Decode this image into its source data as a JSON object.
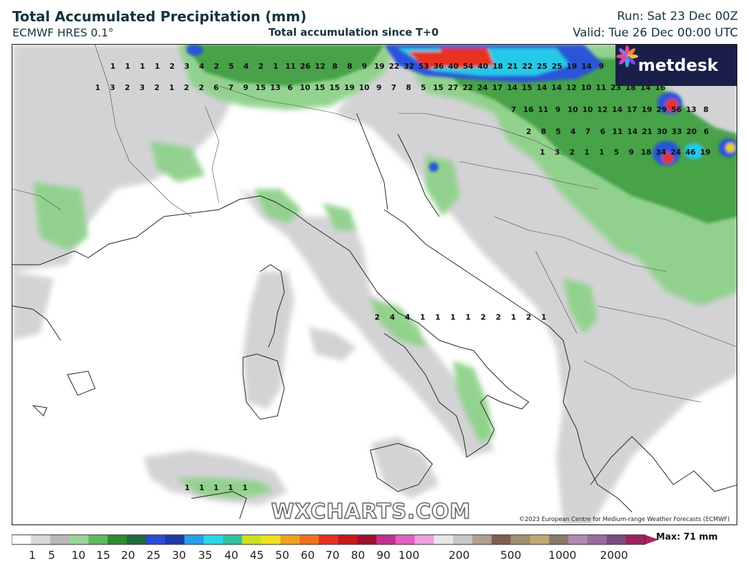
{
  "header": {
    "title": "Total Accumulated Precipitation (mm)",
    "model": "ECMWF HRES 0.1°",
    "accumulation_note": "Total accumulation since T+0",
    "run": "Run: Sat 23 Dec 00Z",
    "valid": "Valid: Tue 26 Dec 00:00 UTC"
  },
  "logo": {
    "text": "metdesk",
    "icon": "metdesk-flower-icon"
  },
  "watermark": "WXCHARTS.COM",
  "credit": "©2023 European Centre for Medium-range Weather Forecasts (ECMWF)",
  "legend": {
    "max_label": "Max: 71 mm",
    "ticks": [
      "1",
      "5",
      "10",
      "15",
      "20",
      "25",
      "30",
      "35",
      "40",
      "45",
      "50",
      "60",
      "70",
      "80",
      "90",
      "100",
      "200",
      "500",
      "1000",
      "2000"
    ]
  },
  "colors": {
    "land_background": "#ffffff",
    "light_green": "#8fd18a",
    "mid_green": "#3a9a3e",
    "blue": "#2a55d8",
    "cyan": "#28c8e8",
    "red": "#e83020",
    "logo_bg": "#1a1f4a"
  },
  "map_values": {
    "alps_north": [
      "1",
      "1",
      "1",
      "1",
      "2",
      "3",
      "4",
      "2",
      "5",
      "4",
      "2",
      "1",
      "11",
      "26",
      "12",
      "8",
      "8",
      "9",
      "19",
      "22",
      "32",
      "53",
      "36",
      "40",
      "54",
      "40",
      "18",
      "21",
      "22",
      "25",
      "25",
      "19",
      "14",
      "9"
    ],
    "alps_row2": [
      "1",
      "3",
      "2",
      "3",
      "2",
      "1",
      "2",
      "2",
      "6",
      "7",
      "9",
      "15",
      "13",
      "6",
      "10",
      "15",
      "15",
      "19",
      "10",
      "9",
      "7",
      "8",
      "5",
      "15",
      "27",
      "22",
      "24",
      "17",
      "14",
      "15",
      "14",
      "14",
      "12",
      "10",
      "11",
      "23",
      "18",
      "14",
      "16"
    ],
    "balkans_north": [
      "7",
      "16",
      "11",
      "9",
      "10",
      "10",
      "12",
      "14",
      "17",
      "19",
      "29",
      "56",
      "13",
      "8"
    ],
    "balkans_mid": [
      "2",
      "8",
      "5",
      "4",
      "7",
      "6",
      "11",
      "14",
      "21",
      "30",
      "33",
      "20",
      "6"
    ],
    "balkans_row4": [
      "1",
      "3",
      "2",
      "1",
      "1",
      "5",
      "9",
      "18",
      "34",
      "24",
      "46",
      "19"
    ],
    "apennines": [
      "2",
      "4",
      "4",
      "1",
      "1",
      "1",
      "1",
      "2",
      "2",
      "1",
      "2",
      "1"
    ],
    "sicily": [
      "1",
      "1",
      "1",
      "1",
      "1"
    ]
  }
}
